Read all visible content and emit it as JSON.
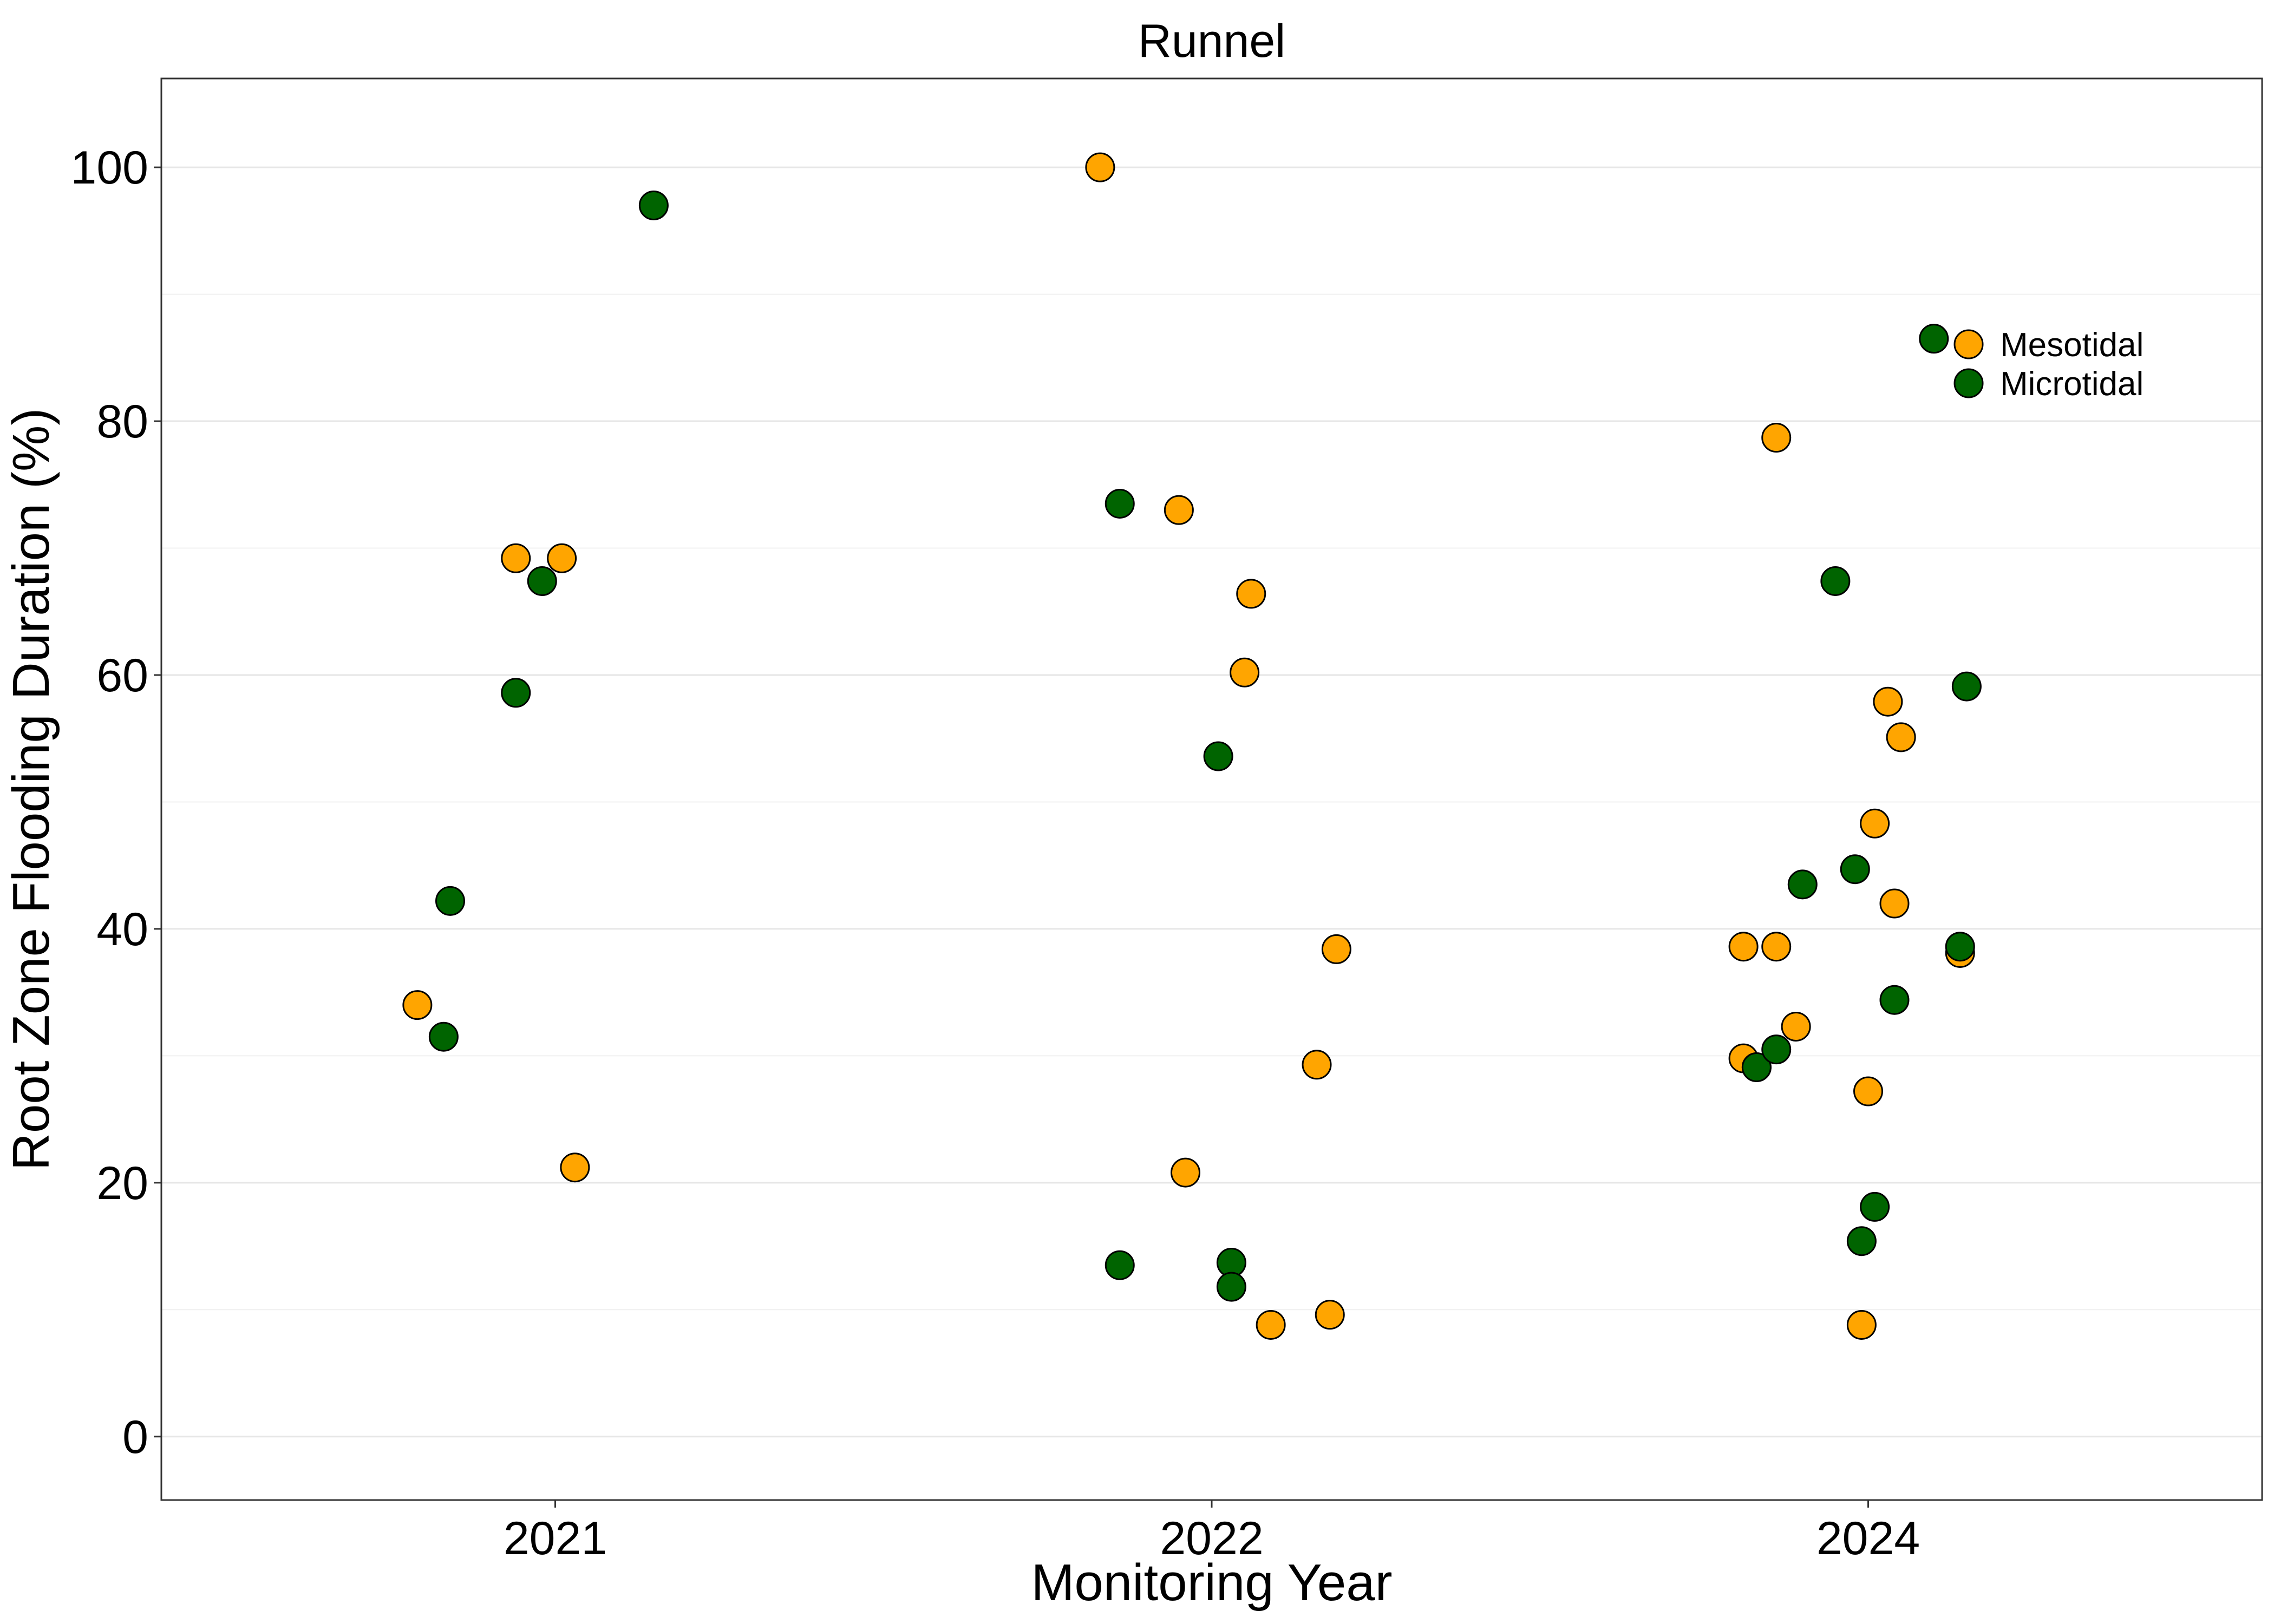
{
  "chart_data": {
    "type": "scatter",
    "title": "Runnel",
    "xlabel": "Monitoring Year",
    "ylabel": "Root Zone Flooding Duration (%)",
    "categories": [
      "2021",
      "2022",
      "2024"
    ],
    "ylim": [
      -5,
      107
    ],
    "y_ticks": [
      "0",
      "20",
      "40",
      "60",
      "80",
      "100"
    ],
    "grid": true,
    "legend_position": "top-right",
    "series": [
      {
        "name": "Mesotidal",
        "color": "#FFA500",
        "points": [
          {
            "x": "2021",
            "jitter": -0.21,
            "y": 34.0
          },
          {
            "x": "2021",
            "jitter": -0.06,
            "y": 69.2
          },
          {
            "x": "2021",
            "jitter": 0.01,
            "y": 69.2
          },
          {
            "x": "2021",
            "jitter": 0.03,
            "y": 21.2
          },
          {
            "x": "2022",
            "jitter": -0.17,
            "y": 100.0
          },
          {
            "x": "2022",
            "jitter": -0.05,
            "y": 73.0
          },
          {
            "x": "2022",
            "jitter": -0.04,
            "y": 20.8
          },
          {
            "x": "2022",
            "jitter": 0.05,
            "y": 60.2
          },
          {
            "x": "2022",
            "jitter": 0.06,
            "y": 66.4
          },
          {
            "x": "2022",
            "jitter": 0.09,
            "y": 8.8
          },
          {
            "x": "2022",
            "jitter": 0.18,
            "y": 9.6
          },
          {
            "x": "2022",
            "jitter": 0.16,
            "y": 29.3
          },
          {
            "x": "2022",
            "jitter": 0.19,
            "y": 38.4
          },
          {
            "x": "2024",
            "jitter": -0.19,
            "y": 29.8
          },
          {
            "x": "2024",
            "jitter": -0.19,
            "y": 38.6
          },
          {
            "x": "2024",
            "jitter": -0.17,
            "y": 29.1
          },
          {
            "x": "2024",
            "jitter": -0.14,
            "y": 38.6
          },
          {
            "x": "2024",
            "jitter": -0.14,
            "y": 78.7
          },
          {
            "x": "2024",
            "jitter": -0.11,
            "y": 32.3
          },
          {
            "x": "2024",
            "jitter": -0.01,
            "y": 8.8
          },
          {
            "x": "2024",
            "jitter": 0.0,
            "y": 27.2
          },
          {
            "x": "2024",
            "jitter": 0.01,
            "y": 48.3
          },
          {
            "x": "2024",
            "jitter": 0.03,
            "y": 57.9
          },
          {
            "x": "2024",
            "jitter": 0.04,
            "y": 42.0
          },
          {
            "x": "2024",
            "jitter": 0.05,
            "y": 55.1
          },
          {
            "x": "2024",
            "jitter": 0.14,
            "y": 38.1
          }
        ]
      },
      {
        "name": "Microtidal",
        "color": "#006400",
        "points": [
          {
            "x": "2021",
            "jitter": -0.17,
            "y": 31.5
          },
          {
            "x": "2021",
            "jitter": -0.16,
            "y": 42.2
          },
          {
            "x": "2021",
            "jitter": -0.06,
            "y": 58.6
          },
          {
            "x": "2021",
            "jitter": -0.02,
            "y": 67.4
          },
          {
            "x": "2021",
            "jitter": 0.15,
            "y": 97.0
          },
          {
            "x": "2022",
            "jitter": -0.14,
            "y": 73.5
          },
          {
            "x": "2022",
            "jitter": -0.14,
            "y": 13.5
          },
          {
            "x": "2022",
            "jitter": 0.01,
            "y": 53.6
          },
          {
            "x": "2022",
            "jitter": 0.03,
            "y": 13.7
          },
          {
            "x": "2022",
            "jitter": 0.03,
            "y": 11.8
          },
          {
            "x": "2024",
            "jitter": -0.17,
            "y": 29.1
          },
          {
            "x": "2024",
            "jitter": -0.14,
            "y": 30.5
          },
          {
            "x": "2024",
            "jitter": -0.1,
            "y": 43.5
          },
          {
            "x": "2024",
            "jitter": -0.05,
            "y": 67.4
          },
          {
            "x": "2024",
            "jitter": -0.02,
            "y": 44.7
          },
          {
            "x": "2024",
            "jitter": -0.01,
            "y": 15.4
          },
          {
            "x": "2024",
            "jitter": 0.01,
            "y": 18.1
          },
          {
            "x": "2024",
            "jitter": 0.04,
            "y": 34.4
          },
          {
            "x": "2024",
            "jitter": 0.15,
            "y": 59.1
          },
          {
            "x": "2024",
            "jitter": 0.14,
            "y": 38.6
          },
          {
            "x": "2024",
            "jitter": 0.1,
            "y": 86.5
          }
        ]
      }
    ]
  }
}
